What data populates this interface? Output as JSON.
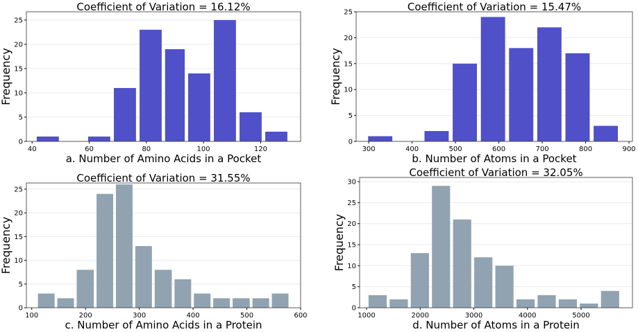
{
  "chart_data": [
    {
      "type": "histogram",
      "title": "Coefficient of Variation = 16.12%",
      "xlabel": "a. Number of Amino Acids in a Pocket",
      "ylabel": "Frequency",
      "bins": [
        41,
        50,
        59,
        68,
        77,
        86,
        94,
        103,
        112,
        121,
        130
      ],
      "counts": [
        1,
        0,
        1,
        11,
        23,
        19,
        14,
        25,
        6,
        2
      ],
      "xlim": [
        38,
        134
      ],
      "ylim": [
        0,
        26.7
      ],
      "xticks": [
        40,
        60,
        80,
        100,
        120
      ],
      "yticks": [
        0,
        5,
        10,
        15,
        20,
        25
      ],
      "color": "#5050c8",
      "grid": true
    },
    {
      "type": "histogram",
      "title": "Coefficient of Variation = 15.47%",
      "xlabel": "b. Number of Atoms in a Pocket",
      "ylabel": "Frequency",
      "bins": [
        294,
        359,
        424,
        489,
        554,
        619,
        684,
        749,
        814,
        879
      ],
      "counts": [
        1,
        0,
        2,
        15,
        24,
        18,
        22,
        17,
        3
      ],
      "xlim": [
        271,
        908
      ],
      "ylim": [
        0,
        25
      ],
      "xticks": [
        300,
        400,
        500,
        600,
        700,
        800,
        900
      ],
      "yticks": [
        0,
        5,
        10,
        15,
        20,
        25
      ],
      "color": "#5050c8",
      "grid": true
    },
    {
      "type": "histogram",
      "title": "Coefficient of Variation = 31.55%",
      "xlabel": "c. Number of Amino Acids in a Protein",
      "ylabel": "Frequency",
      "bins": [
        109,
        145,
        181,
        218,
        254,
        290,
        326,
        363,
        399,
        435,
        471,
        508,
        544,
        580
      ],
      "counts": [
        3,
        2,
        8,
        24,
        26,
        13,
        8,
        6,
        3,
        2,
        2,
        2,
        3
      ],
      "xlim": [
        90,
        600
      ],
      "ylim": [
        0,
        26.3
      ],
      "xticks": [
        100,
        200,
        300,
        400,
        500,
        600
      ],
      "yticks": [
        0,
        5,
        10,
        15,
        20,
        25
      ],
      "color": "#91a3b0",
      "grid": true
    },
    {
      "type": "histogram",
      "title": "Coefficient of Variation = 32.05%",
      "xlabel": "d. Number of Atoms in a Protein",
      "ylabel": "Frequency",
      "bins": [
        1010,
        1404,
        1798,
        2192,
        2586,
        2980,
        3374,
        3768,
        4162,
        4556,
        4950,
        5344,
        5738
      ],
      "counts": [
        3,
        2,
        13,
        29,
        21,
        12,
        10,
        2,
        3,
        2,
        1,
        4
      ],
      "xlim": [
        871,
        5958
      ],
      "ylim": [
        0,
        31
      ],
      "xticks": [
        1000,
        2000,
        3000,
        4000,
        5000
      ],
      "yticks": [
        0,
        5,
        10,
        15,
        20,
        25,
        30
      ],
      "color": "#91a3b0",
      "grid": true
    }
  ]
}
